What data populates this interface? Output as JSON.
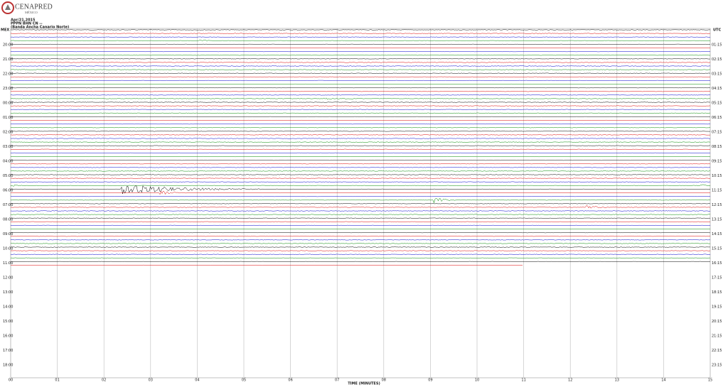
{
  "header": {
    "logo_title": "CENAPRED",
    "logo_subtitle": "MÉXICO",
    "date": "Apr/21,2015",
    "station": "PPPN BHN CN --",
    "network": "(Banda Ancha Canario Norte)"
  },
  "left_axis": {
    "title": "MEX",
    "labels": [
      "20:00",
      "21:00",
      "22:00",
      "23:00",
      "00:00",
      "01:00",
      "02:00",
      "03:00",
      "04:00",
      "05:00",
      "06:00",
      "07:00",
      "08:00",
      "09:00",
      "10:00",
      "11:00",
      "12:00",
      "13:00",
      "14:00",
      "15:00",
      "16:00",
      "17:00",
      "18:00"
    ]
  },
  "right_axis": {
    "title": "UTC",
    "labels": [
      "01:15",
      "02:15",
      "03:15",
      "04:15",
      "05:15",
      "06:15",
      "07:15",
      "08:15",
      "09:15",
      "10:15",
      "11:15",
      "12:15",
      "13:15",
      "14:15",
      "15:15",
      "16:15",
      "17:15",
      "18:15",
      "19:15",
      "20:15",
      "21:15",
      "22:15",
      "23:15"
    ]
  },
  "x_axis": {
    "title": "TIME (MINUTES)",
    "labels": [
      "00",
      "01",
      "02",
      "03",
      "04",
      "05",
      "06",
      "07",
      "08",
      "09",
      "10",
      "11",
      "12",
      "13",
      "14",
      "15"
    ]
  }
}
